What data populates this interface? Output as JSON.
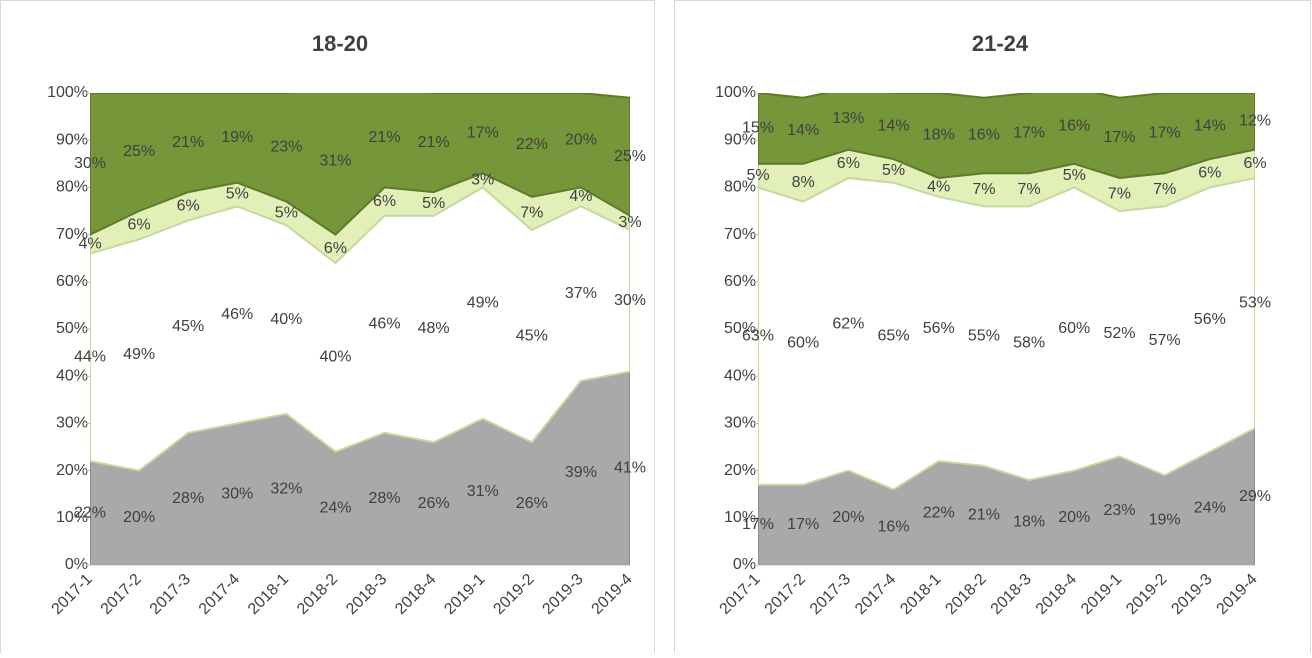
{
  "chart_data": [
    {
      "type": "area",
      "title": "18-20",
      "categories": [
        "2017-1",
        "2017-2",
        "2017-3",
        "2017-4",
        "2018-1",
        "2018-2",
        "2018-3",
        "2018-4",
        "2019-1",
        "2019-2",
        "2019-3",
        "2019-4"
      ],
      "stacked": true,
      "ylim": [
        0,
        100
      ],
      "yticks": [
        {
          "value": 0,
          "label": "0%"
        },
        {
          "value": 10,
          "label": "10%"
        },
        {
          "value": 20,
          "label": "20%"
        },
        {
          "value": 30,
          "label": "30%"
        },
        {
          "value": 40,
          "label": "40%"
        },
        {
          "value": 50,
          "label": "50%"
        },
        {
          "value": 60,
          "label": "60%"
        },
        {
          "value": 70,
          "label": "70%"
        },
        {
          "value": 80,
          "label": "80%"
        },
        {
          "value": 90,
          "label": "90%"
        },
        {
          "value": 100,
          "label": "100%"
        }
      ],
      "series": [
        {
          "color": "#a9a9a9",
          "values": [
            22,
            20,
            28,
            30,
            32,
            24,
            28,
            26,
            31,
            26,
            39,
            41
          ],
          "value_labels": [
            "22%",
            "20%",
            "28%",
            "30%",
            "32%",
            "24%",
            "28%",
            "26%",
            "31%",
            "26%",
            "39%",
            "41%"
          ]
        },
        {
          "color": "#ffffff",
          "values": [
            44,
            49,
            45,
            46,
            40,
            40,
            46,
            48,
            49,
            45,
            37,
            30
          ],
          "value_labels": [
            "44%",
            "49%",
            "45%",
            "46%",
            "40%",
            "40%",
            "46%",
            "48%",
            "49%",
            "45%",
            "37%",
            "30%"
          ]
        },
        {
          "color": "#e2f0b8",
          "values": [
            4,
            6,
            6,
            5,
            5,
            6,
            6,
            5,
            3,
            7,
            4,
            3
          ],
          "value_labels": [
            "4%",
            "6%",
            "6%",
            "5%",
            "5%",
            "6%",
            "6%",
            "5%",
            "3%",
            "7%",
            "4%",
            "3%"
          ]
        },
        {
          "color": "#76963a",
          "values": [
            30,
            25,
            21,
            19,
            23,
            31,
            21,
            21,
            17,
            22,
            20,
            25
          ],
          "value_labels": [
            "30%",
            "25%",
            "21%",
            "19%",
            "23%",
            "31%",
            "21%",
            "21%",
            "17%",
            "22%",
            "20%",
            "25%"
          ]
        }
      ]
    },
    {
      "type": "area",
      "title": "21-24",
      "categories": [
        "2017-1",
        "2017-2",
        "2017-3",
        "2017-4",
        "2018-1",
        "2018-2",
        "2018-3",
        "2018-4",
        "2019-1",
        "2019-2",
        "2019-3",
        "2019-4"
      ],
      "stacked": true,
      "ylim": [
        0,
        100
      ],
      "yticks": [
        {
          "value": 0,
          "label": "0%"
        },
        {
          "value": 10,
          "label": "10%"
        },
        {
          "value": 20,
          "label": "20%"
        },
        {
          "value": 30,
          "label": "30%"
        },
        {
          "value": 40,
          "label": "40%"
        },
        {
          "value": 50,
          "label": "50%"
        },
        {
          "value": 60,
          "label": "60%"
        },
        {
          "value": 70,
          "label": "70%"
        },
        {
          "value": 80,
          "label": "80%"
        },
        {
          "value": 90,
          "label": "90%"
        },
        {
          "value": 100,
          "label": "100%"
        }
      ],
      "series": [
        {
          "color": "#a9a9a9",
          "values": [
            17,
            17,
            20,
            16,
            22,
            21,
            18,
            20,
            23,
            19,
            24,
            29
          ],
          "value_labels": [
            "17%",
            "17%",
            "20%",
            "16%",
            "22%",
            "21%",
            "18%",
            "20%",
            "23%",
            "19%",
            "24%",
            "29%"
          ]
        },
        {
          "color": "#ffffff",
          "values": [
            63,
            60,
            62,
            65,
            56,
            55,
            58,
            60,
            52,
            57,
            56,
            53
          ],
          "value_labels": [
            "63%",
            "60%",
            "62%",
            "65%",
            "56%",
            "55%",
            "58%",
            "60%",
            "52%",
            "57%",
            "56%",
            "53%"
          ]
        },
        {
          "color": "#e2f0b8",
          "values": [
            5,
            8,
            6,
            5,
            4,
            7,
            7,
            5,
            7,
            7,
            6,
            6
          ],
          "value_labels": [
            "5%",
            "8%",
            "6%",
            "5%",
            "4%",
            "7%",
            "7%",
            "5%",
            "7%",
            "7%",
            "6%",
            "6%"
          ]
        },
        {
          "color": "#76963a",
          "values": [
            15,
            14,
            13,
            14,
            18,
            16,
            17,
            16,
            17,
            17,
            14,
            12
          ],
          "value_labels": [
            "15%",
            "14%",
            "13%",
            "14%",
            "18%",
            "16%",
            "17%",
            "16%",
            "17%",
            "17%",
            "14%",
            "12%"
          ]
        }
      ]
    }
  ]
}
